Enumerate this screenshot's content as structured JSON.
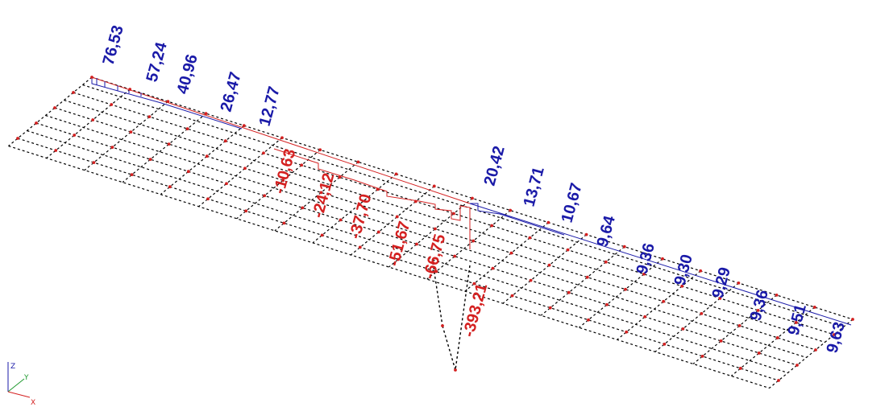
{
  "colors": {
    "positive": "#1a1aa8",
    "negative": "#d42020",
    "mesh": "#000000",
    "node": "#d42020",
    "axis_x": "#d42020",
    "axis_y": "#1f9a2f",
    "axis_z": "#1a1aa8"
  },
  "positive_values_left": [
    "76,53",
    "57,24",
    "40,96",
    "26,47",
    "12,77"
  ],
  "negative_values": [
    "-10,63",
    "-24,12",
    "-37,70",
    "-51,67",
    "-66,75",
    "-393,21"
  ],
  "positive_values_right": [
    "20,42",
    "13,71",
    "10,67",
    "9,64",
    "9,36",
    "9,30",
    "9,29",
    "9,36",
    "9,51",
    "9,63"
  ],
  "axes": {
    "x": "X",
    "y": "Y",
    "z": "Z"
  }
}
